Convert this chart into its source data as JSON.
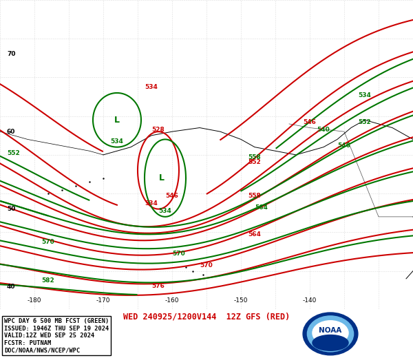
{
  "title_bottom": "WED 240925/1200V144  12Z GFS (RED)",
  "title_bottom_color": "#cc0000",
  "legend_lines": [
    "WPC DAY 6 500 MB FCST (GREEN)",
    "ISSUED: 1946Z THU SEP 19 2024",
    "VALID:12Z WED SEP 25 2024",
    "FCSTR: PUTNAM",
    "DOC/NOAA/NWS/NCEP/WPC"
  ],
  "bg_color": "#ffffff",
  "red_color": "#cc0000",
  "green_color": "#007700",
  "figsize": [
    6.0,
    5.2
  ],
  "dpi": 100,
  "xlim": [
    -185,
    -125
  ],
  "ylim": [
    37,
    77
  ],
  "lon_ticks": [
    -180,
    -170,
    -160,
    -150,
    -140
  ],
  "lat_ticks": [
    40,
    50,
    60,
    70
  ]
}
